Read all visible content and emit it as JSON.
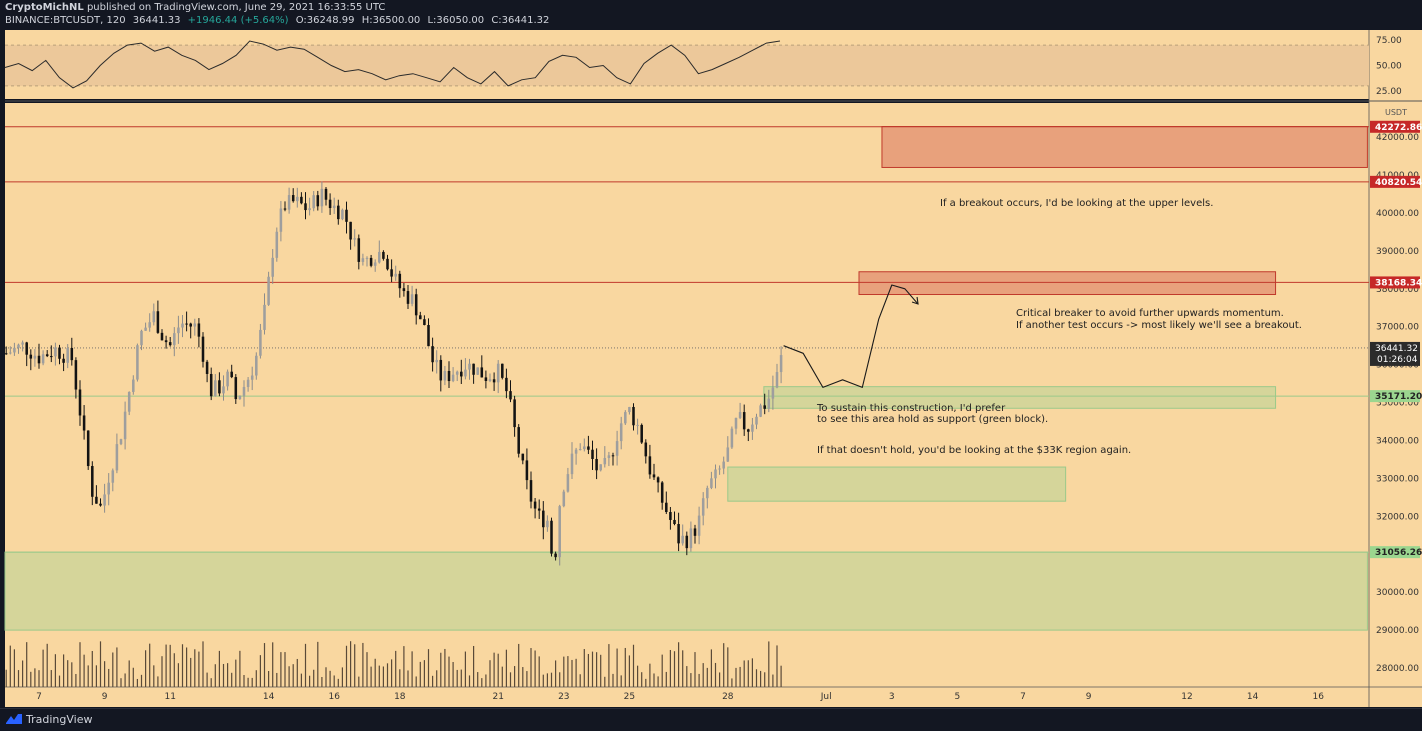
{
  "header": {
    "author": "CryptoMichNL",
    "published_text": "published on TradingView.com, June 29, 2021 16:33:55 UTC",
    "symbol": "BINANCE:BTCUSDT, 120",
    "last": "36441.33",
    "change": "+1946.44 (+5.64%)",
    "open": "O:36248.99",
    "high": "H:36500.00",
    "low": "L:36050.00",
    "close": "C:36441.32"
  },
  "footer": {
    "brand": "TradingView"
  },
  "colors": {
    "background": "#f9d7a0",
    "panel_bg": "#131722",
    "candle": "#131313",
    "wick_up": "#8c8c8c",
    "resistance_line": "#c0392b",
    "resistance_box": "#e8a17c",
    "support_box": "#d5d59a",
    "support_border": "#9bc98a",
    "rsi_band": "#ecc89a"
  },
  "annotations": {
    "breakout": "If a breakout occurs, I'd be looking at the upper levels.",
    "critical_1": "Critical breaker to avoid further upwards momentum.",
    "critical_2": "If another test occurs -> most likely we'll see a breakout.",
    "sustain_1": "To sustain this construction, I'd prefer",
    "sustain_2": "to see this area hold as support (green block).",
    "fallback": "If that doesn't hold, you'd be looking at the $33K region again."
  },
  "chart_data": {
    "type": "candlestick",
    "currency": "USDT",
    "y_range": [
      27500,
      42900
    ],
    "y_ticks": [
      "42000.00",
      "41000.00",
      "40000.00",
      "39000.00",
      "38000.00",
      "37000.00",
      "36000.00",
      "35000.00",
      "34000.00",
      "33000.00",
      "32000.00",
      "31000.00",
      "30000.00",
      "29000.00",
      "28000.00"
    ],
    "x_ticks": [
      {
        "label": "7",
        "day": 7
      },
      {
        "label": "9",
        "day": 9
      },
      {
        "label": "11",
        "day": 11
      },
      {
        "label": "14",
        "day": 14
      },
      {
        "label": "16",
        "day": 16
      },
      {
        "label": "18",
        "day": 18
      },
      {
        "label": "21",
        "day": 21
      },
      {
        "label": "23",
        "day": 23
      },
      {
        "label": "25",
        "day": 25
      },
      {
        "label": "28",
        "day": 28
      },
      {
        "label": "Jul",
        "day": 31
      },
      {
        "label": "3",
        "day": 33
      },
      {
        "label": "5",
        "day": 35
      },
      {
        "label": "7",
        "day": 37
      },
      {
        "label": "9",
        "day": 39
      },
      {
        "label": "12",
        "day": 42
      },
      {
        "label": "14",
        "day": 44
      },
      {
        "label": "16",
        "day": 46
      }
    ],
    "price_path": [
      [
        6.0,
        36300
      ],
      [
        6.5,
        36500
      ],
      [
        7.0,
        36200
      ],
      [
        7.5,
        36400
      ],
      [
        8.0,
        36150
      ],
      [
        8.3,
        34500
      ],
      [
        8.6,
        32700
      ],
      [
        8.9,
        32200
      ],
      [
        9.1,
        33000
      ],
      [
        9.5,
        34200
      ],
      [
        9.8,
        35500
      ],
      [
        10.1,
        36800
      ],
      [
        10.5,
        37300
      ],
      [
        10.8,
        36700
      ],
      [
        11.0,
        36500
      ],
      [
        11.3,
        37100
      ],
      [
        11.8,
        37000
      ],
      [
        12.0,
        36300
      ],
      [
        12.2,
        35300
      ],
      [
        12.5,
        35400
      ],
      [
        12.8,
        35700
      ],
      [
        13.0,
        35100
      ],
      [
        13.3,
        35500
      ],
      [
        13.6,
        36100
      ],
      [
        13.9,
        37500
      ],
      [
        14.2,
        39500
      ],
      [
        14.5,
        40200
      ],
      [
        14.8,
        40300
      ],
      [
        15.2,
        40100
      ],
      [
        15.6,
        40500
      ],
      [
        16.0,
        40150
      ],
      [
        16.3,
        40000
      ],
      [
        16.6,
        39200
      ],
      [
        16.9,
        38700
      ],
      [
        17.2,
        38900
      ],
      [
        17.5,
        39000
      ],
      [
        17.8,
        38300
      ],
      [
        18.1,
        37900
      ],
      [
        18.4,
        37700
      ],
      [
        18.7,
        37100
      ],
      [
        19.0,
        36100
      ],
      [
        19.3,
        35600
      ],
      [
        19.6,
        35800
      ],
      [
        20.0,
        36000
      ],
      [
        20.3,
        35900
      ],
      [
        20.6,
        35700
      ],
      [
        21.0,
        35800
      ],
      [
        21.3,
        35200
      ],
      [
        21.6,
        33800
      ],
      [
        21.9,
        32700
      ],
      [
        22.2,
        32000
      ],
      [
        22.5,
        31900
      ],
      [
        22.7,
        30600
      ],
      [
        22.9,
        32600
      ],
      [
        23.2,
        33400
      ],
      [
        23.5,
        33900
      ],
      [
        23.8,
        33600
      ],
      [
        24.1,
        33100
      ],
      [
        24.4,
        33500
      ],
      [
        24.7,
        34400
      ],
      [
        25.0,
        34800
      ],
      [
        25.3,
        34300
      ],
      [
        25.6,
        33300
      ],
      [
        25.9,
        32600
      ],
      [
        26.2,
        32000
      ],
      [
        26.5,
        31400
      ],
      [
        26.8,
        31400
      ],
      [
        27.1,
        31800
      ],
      [
        27.4,
        32800
      ],
      [
        27.7,
        33100
      ],
      [
        28.0,
        33700
      ],
      [
        28.3,
        34600
      ],
      [
        28.6,
        34300
      ],
      [
        28.9,
        34800
      ],
      [
        29.2,
        35000
      ],
      [
        29.5,
        35700
      ],
      [
        29.7,
        36441
      ]
    ],
    "projection_path": [
      [
        29.7,
        36500
      ],
      [
        30.3,
        36300
      ],
      [
        30.9,
        35400
      ],
      [
        31.5,
        35600
      ],
      [
        32.1,
        35400
      ],
      [
        32.6,
        37200
      ],
      [
        33.0,
        38100
      ],
      [
        33.4,
        38000
      ],
      [
        33.8,
        37600
      ]
    ],
    "resistance_levels": [
      {
        "price": 42272.86,
        "label": "42272.86"
      },
      {
        "price": 40820.54,
        "label": "40820.54"
      },
      {
        "price": 38168.34,
        "label": "38168.34"
      }
    ],
    "support_levels": [
      {
        "price": 35171.2,
        "label": "35171.20"
      },
      {
        "price": 31056.26,
        "label": "31056.26"
      }
    ],
    "current_price": {
      "price": 36441.32,
      "label": "36441.32",
      "countdown": "01:26:04"
    },
    "zones": [
      {
        "kind": "resistance",
        "day_from": 32.7,
        "day_to": 47.5,
        "price_top": 42280,
        "price_bottom": 41200
      },
      {
        "kind": "resistance",
        "day_from": 32.0,
        "day_to": 44.7,
        "price_top": 38450,
        "price_bottom": 37850
      },
      {
        "kind": "support",
        "day_from": 29.1,
        "day_to": 44.7,
        "price_top": 35420,
        "price_bottom": 34850
      },
      {
        "kind": "support",
        "day_from": 28.0,
        "day_to": 38.3,
        "price_top": 33300,
        "price_bottom": 32400
      },
      {
        "kind": "support",
        "day_from": 5.8,
        "day_to": 47.5,
        "price_top": 31056,
        "price_bottom": 29000
      }
    ],
    "rsi": {
      "ticks": [
        "75.00",
        "50.00",
        "25.00"
      ],
      "band": [
        30,
        70
      ],
      "values": [
        48,
        52,
        45,
        55,
        38,
        28,
        35,
        50,
        62,
        70,
        72,
        64,
        68,
        60,
        55,
        46,
        52,
        60,
        74,
        71,
        65,
        68,
        66,
        58,
        50,
        44,
        46,
        42,
        36,
        40,
        42,
        38,
        34,
        48,
        38,
        32,
        44,
        30,
        36,
        38,
        54,
        60,
        58,
        48,
        50,
        38,
        32,
        52,
        62,
        70,
        60,
        42,
        46,
        52,
        58,
        65,
        72,
        74
      ]
    }
  }
}
